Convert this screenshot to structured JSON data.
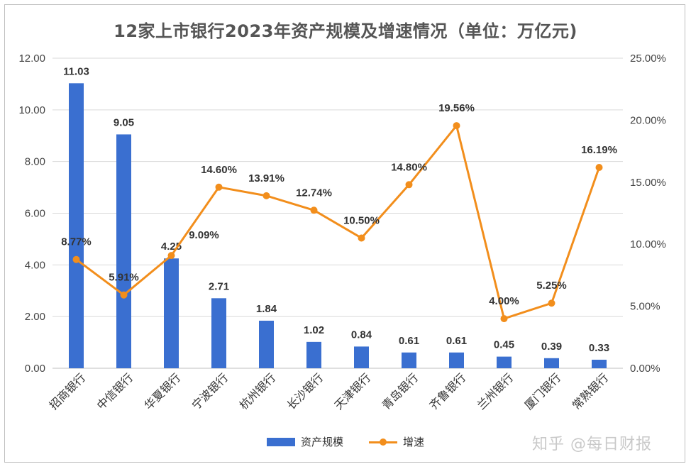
{
  "chart_data": {
    "type": "bar",
    "title": "12家上市银行2023年资产规模及增速情况（单位：万亿元)",
    "categories": [
      "招商银行",
      "中信银行",
      "华夏银行",
      "宁波银行",
      "杭州银行",
      "长沙银行",
      "天津银行",
      "青岛银行",
      "齐鲁银行",
      "兰州银行",
      "厦门银行",
      "常熟银行"
    ],
    "series": [
      {
        "name": "资产规模",
        "type": "bar",
        "axis": "left",
        "values": [
          11.03,
          9.05,
          4.25,
          2.71,
          1.84,
          1.02,
          0.84,
          0.61,
          0.61,
          0.45,
          0.39,
          0.33
        ],
        "labels": [
          "11.03",
          "9.05",
          "4.25",
          "2.71",
          "1.84",
          "1.02",
          "0.84",
          "0.61",
          "0.61",
          "0.45",
          "0.39",
          "0.33"
        ],
        "color": "#3a6fd0"
      },
      {
        "name": "增速",
        "type": "line",
        "axis": "right",
        "values": [
          8.77,
          5.91,
          9.09,
          14.6,
          13.91,
          12.74,
          10.5,
          14.8,
          19.56,
          4.0,
          5.25,
          16.19
        ],
        "labels": [
          "8.77%",
          "5.91%",
          "9.09%",
          "14.60%",
          "13.91%",
          "12.74%",
          "10.50%",
          "14.80%",
          "19.56%",
          "4.00%",
          "5.25%",
          "16.19%"
        ],
        "color": "#f28e1c"
      }
    ],
    "y_left": {
      "ylim": [
        0,
        12
      ],
      "ticks": [
        "0.00",
        "2.00",
        "4.00",
        "6.00",
        "8.00",
        "10.00",
        "12.00"
      ]
    },
    "y_right": {
      "ylim": [
        0,
        25
      ],
      "ticks": [
        "0.00%",
        "5.00%",
        "10.00%",
        "15.00%",
        "20.00%",
        "25.00%"
      ]
    },
    "grid": true,
    "legend": "bottom"
  },
  "legend": {
    "bar_label": "资产规模",
    "line_label": "增速"
  },
  "watermark": "知乎 @每日财报"
}
